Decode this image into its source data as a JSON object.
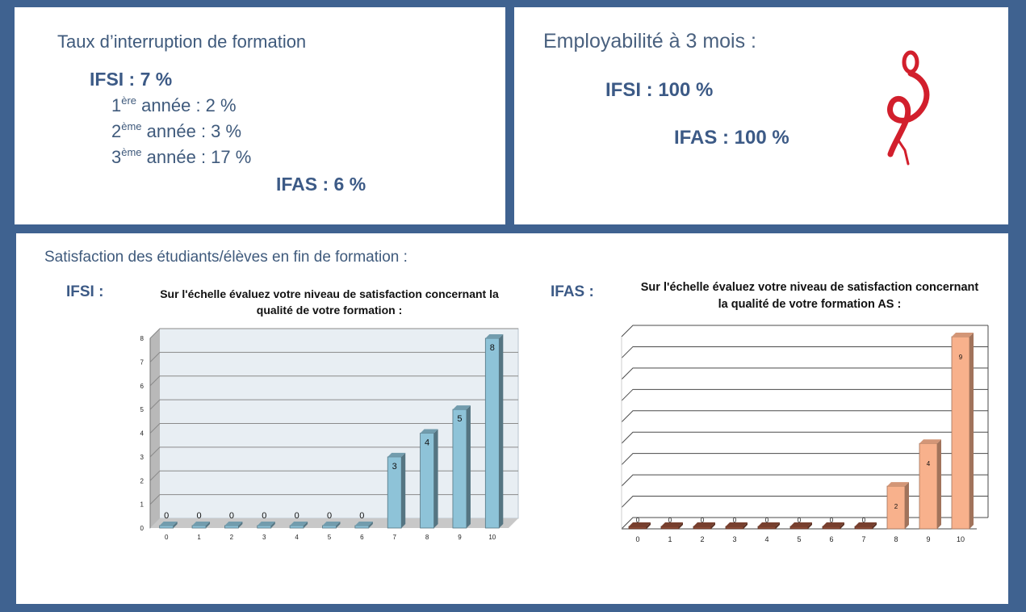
{
  "interruption": {
    "title": "Taux d’interruption de formation",
    "ifsi_total": "IFSI : 7 %",
    "years": [
      {
        "num": "1",
        "sup": "ère",
        "rest": " année : 2 %"
      },
      {
        "num": "2",
        "sup": "ème",
        "rest": " année : 3 %"
      },
      {
        "num": "3",
        "sup": "ème",
        "rest": " année : 17 %"
      }
    ],
    "ifas_total": "IFAS : 6 %"
  },
  "employability": {
    "title": "Employabilité à 3 mois :",
    "ifsi": "IFSI : 100 %",
    "ifas": "IFAS : 100 %",
    "logo_icon": "caduceus-icon",
    "logo_color": "#d21f2c"
  },
  "satisfaction": {
    "title": "Satisfaction des étudiants/élèves  en fin de formation :",
    "ifsi_label": "IFSI :",
    "ifas_label": "IFAS :"
  },
  "colors": {
    "frame": "#3f6290",
    "ifsi_bar": "#8ec3d8",
    "ifas_bar": "#f8b18c",
    "ifas_zero_bar": "#8c4a36",
    "heading_text": "#3c5a86"
  },
  "chart_data": [
    {
      "type": "bar",
      "title": "Sur l'échelle évaluez votre niveau de satisfaction concernant la qualité de votre formation  :",
      "categories": [
        "0",
        "1",
        "2",
        "3",
        "4",
        "5",
        "6",
        "7",
        "8",
        "9",
        "10"
      ],
      "values": [
        0,
        0,
        0,
        0,
        0,
        0,
        0,
        3,
        4,
        5,
        8
      ],
      "data_labels": [
        "0",
        "0",
        "0",
        "0",
        "0",
        "0",
        "0",
        "3",
        "4",
        "5",
        "8"
      ],
      "y_ticks": [
        "0",
        "1",
        "2",
        "3",
        "4",
        "5",
        "6",
        "7",
        "8"
      ],
      "ylim": [
        0,
        8
      ],
      "grid": true,
      "style": "3d"
    },
    {
      "type": "bar",
      "title": "Sur l'échelle évaluez votre niveau de satisfaction concernant la qualité de votre formation AS :",
      "categories": [
        "0",
        "1",
        "2",
        "3",
        "4",
        "5",
        "6",
        "7",
        "8",
        "9",
        "10"
      ],
      "values": [
        0,
        0,
        0,
        0,
        0,
        0,
        0,
        0,
        2,
        4,
        9
      ],
      "data_labels": [
        "0",
        "0",
        "0",
        "0",
        "0",
        "0",
        "0",
        "0",
        "2",
        "4",
        "9"
      ],
      "ylim": [
        0,
        9
      ],
      "grid": true,
      "style": "3d"
    }
  ]
}
